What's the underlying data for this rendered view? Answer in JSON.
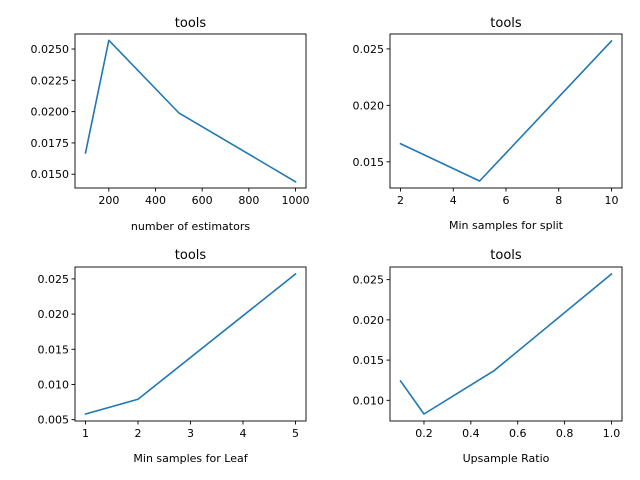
{
  "chart_data": [
    {
      "type": "line",
      "title": "tools",
      "xlabel": "number of estimators",
      "ylabel": "",
      "x": [
        100,
        200,
        500,
        1000
      ],
      "series": [
        {
          "values": [
            0.0167,
            0.0257,
            0.0199,
            0.0144
          ]
        }
      ],
      "xlim": [
        55,
        1045
      ],
      "ylim": [
        0.0139,
        0.0262
      ],
      "xticks": [
        200,
        400,
        600,
        800,
        1000
      ],
      "xticklabels": [
        "200",
        "400",
        "600",
        "800",
        "1000"
      ],
      "yticks": [
        0.015,
        0.0175,
        0.02,
        0.0225,
        0.025
      ],
      "yticklabels": [
        "0.0150",
        "0.0175",
        "0.0200",
        "0.0225",
        "0.0250"
      ],
      "grid": false,
      "color": "#1f77b4"
    },
    {
      "type": "line",
      "title": "tools",
      "xlabel": "Min samples for split",
      "ylabel": "",
      "x": [
        2,
        5,
        10
      ],
      "series": [
        {
          "values": [
            0.0166,
            0.0133,
            0.0257
          ]
        }
      ],
      "xlim": [
        1.6,
        10.4
      ],
      "ylim": [
        0.01268,
        0.02632
      ],
      "xticks": [
        2,
        4,
        6,
        8,
        10
      ],
      "xticklabels": [
        "2",
        "4",
        "6",
        "8",
        "10"
      ],
      "yticks": [
        0.015,
        0.02,
        0.025
      ],
      "yticklabels": [
        "0.015",
        "0.020",
        "0.025"
      ],
      "grid": false,
      "color": "#1f77b4"
    },
    {
      "type": "line",
      "title": "tools",
      "xlabel": "Min samples for Leaf",
      "ylabel": "",
      "x": [
        1,
        2,
        5
      ],
      "series": [
        {
          "values": [
            0.0058,
            0.0079,
            0.0257
          ]
        }
      ],
      "xlim": [
        0.8,
        5.2
      ],
      "ylim": [
        0.00481,
        0.02669
      ],
      "xticks": [
        1,
        2,
        3,
        4,
        5
      ],
      "xticklabels": [
        "1",
        "2",
        "3",
        "4",
        "5"
      ],
      "yticks": [
        0.005,
        0.01,
        0.015,
        0.02,
        0.025
      ],
      "yticklabels": [
        "0.005",
        "0.010",
        "0.015",
        "0.020",
        "0.025"
      ],
      "grid": false,
      "color": "#1f77b4"
    },
    {
      "type": "line",
      "title": "tools",
      "xlabel": "Upsample Ratio",
      "ylabel": "",
      "x": [
        0.1,
        0.2,
        0.5,
        1.0
      ],
      "series": [
        {
          "values": [
            0.0124,
            0.0083,
            0.0137,
            0.0257
          ]
        }
      ],
      "xlim": [
        0.055,
        1.045
      ],
      "ylim": [
        0.00743,
        0.02657
      ],
      "xticks": [
        0.2,
        0.4,
        0.6,
        0.8,
        1.0
      ],
      "xticklabels": [
        "0.2",
        "0.4",
        "0.6",
        "0.8",
        "1.0"
      ],
      "yticks": [
        0.01,
        0.015,
        0.02,
        0.025
      ],
      "yticklabels": [
        "0.010",
        "0.015",
        "0.020",
        "0.025"
      ],
      "grid": false,
      "color": "#1f77b4"
    }
  ]
}
